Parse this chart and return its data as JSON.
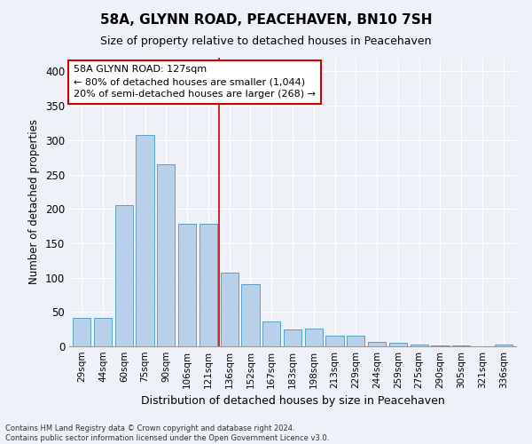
{
  "title": "58A, GLYNN ROAD, PEACEHAVEN, BN10 7SH",
  "subtitle": "Size of property relative to detached houses in Peacehaven",
  "xlabel": "Distribution of detached houses by size in Peacehaven",
  "ylabel": "Number of detached properties",
  "categories": [
    "29sqm",
    "44sqm",
    "60sqm",
    "75sqm",
    "90sqm",
    "106sqm",
    "121sqm",
    "136sqm",
    "152sqm",
    "167sqm",
    "183sqm",
    "198sqm",
    "213sqm",
    "229sqm",
    "244sqm",
    "259sqm",
    "275sqm",
    "290sqm",
    "305sqm",
    "321sqm",
    "336sqm"
  ],
  "values": [
    42,
    42,
    206,
    307,
    265,
    178,
    178,
    107,
    90,
    36,
    24,
    26,
    16,
    15,
    6,
    5,
    2,
    1,
    1,
    0,
    2
  ],
  "bar_color": "#b8d0e8",
  "bar_edge_color": "#5a9ec8",
  "annotation_line0": "58A GLYNN ROAD: 127sqm",
  "annotation_line1": "← 80% of detached houses are smaller (1,044)",
  "annotation_line2": "20% of semi-detached houses are larger (268) →",
  "annotation_box_facecolor": "#ffffff",
  "annotation_box_edgecolor": "#cc0000",
  "vline_color": "#cc0000",
  "vline_x": 6.5,
  "background_color": "#eef2f8",
  "grid_color": "#ffffff",
  "footer_line1": "Contains HM Land Registry data © Crown copyright and database right 2024.",
  "footer_line2": "Contains public sector information licensed under the Open Government Licence v3.0.",
  "ylim": [
    0,
    420
  ],
  "yticks": [
    0,
    50,
    100,
    150,
    200,
    250,
    300,
    350,
    400
  ]
}
